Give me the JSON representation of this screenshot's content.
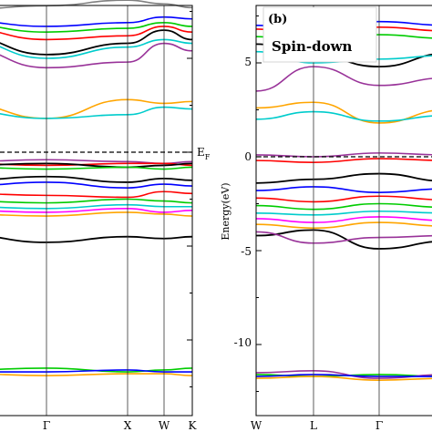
{
  "chart_data": [
    {
      "type": "line",
      "panel": "left (spin-up, cropped)",
      "title": "",
      "xlabel": "",
      "ylabel": "",
      "k_points": [
        "Γ",
        "X",
        "W",
        "K"
      ],
      "fermi_label": "E",
      "fermi_sub": "F",
      "fermi_energy": 0,
      "ylim": [
        -12.8,
        8.2
      ],
      "grid": false,
      "series": [
        {
          "color": "#808080",
          "x": [
            0,
            1,
            2,
            3,
            4
          ],
          "y": [
            7.6,
            7.8,
            8.1,
            7.9,
            7.7
          ]
        },
        {
          "color": "#00cc00",
          "x": [
            0,
            1,
            2,
            3,
            4
          ],
          "y": [
            6.8,
            6.4,
            6.6,
            6.9,
            6.7
          ]
        },
        {
          "color": "#000000",
          "x": [
            0,
            1,
            2,
            3,
            4
          ],
          "y": [
            6.2,
            5.2,
            5.8,
            6.5,
            6.0
          ]
        },
        {
          "color": "#ff0000",
          "x": [
            0,
            1,
            2,
            3,
            4
          ],
          "y": [
            6.6,
            6.0,
            6.2,
            6.7,
            6.4
          ]
        },
        {
          "color": "#0000ff",
          "x": [
            0,
            1,
            2,
            3,
            4
          ],
          "y": [
            7.0,
            6.7,
            6.9,
            7.2,
            7.1
          ]
        },
        {
          "color": "#00cccc",
          "x": [
            0,
            1,
            2,
            3,
            4
          ],
          "y": [
            6.0,
            5.0,
            5.6,
            6.0,
            5.8
          ]
        },
        {
          "color": "#993399",
          "x": [
            0,
            1,
            2,
            3,
            4
          ],
          "y": [
            5.6,
            4.5,
            4.8,
            5.8,
            5.4
          ]
        },
        {
          "color": "#ffa500",
          "x": [
            0,
            1,
            2,
            3,
            4
          ],
          "y": [
            2.6,
            1.8,
            2.8,
            2.6,
            2.7
          ]
        },
        {
          "color": "#00cccc",
          "x": [
            0,
            1,
            2,
            3,
            4
          ],
          "y": [
            2.2,
            1.8,
            2.0,
            2.4,
            2.3
          ]
        },
        {
          "color": "#993399",
          "x": [
            0,
            1,
            2,
            3,
            4
          ],
          "y": [
            -0.5,
            -0.4,
            -0.5,
            -0.6,
            -0.5
          ]
        },
        {
          "color": "#ff0000",
          "x": [
            0,
            1,
            2,
            3,
            4
          ],
          "y": [
            -0.6,
            -0.7,
            -0.6,
            -0.6,
            -0.7
          ]
        },
        {
          "color": "#000000",
          "x": [
            0,
            1,
            2,
            3,
            4
          ],
          "y": [
            -0.7,
            -0.6,
            -0.8,
            -0.7,
            -0.6
          ]
        },
        {
          "color": "#00cc00",
          "x": [
            0,
            1,
            2,
            3,
            4
          ],
          "y": [
            -0.8,
            -0.9,
            -0.8,
            -0.9,
            -0.8
          ]
        },
        {
          "color": "#000000",
          "x": [
            0,
            1,
            2,
            3,
            4
          ],
          "y": [
            -1.5,
            -1.3,
            -1.6,
            -1.4,
            -1.5
          ]
        },
        {
          "color": "#0000ff",
          "x": [
            0,
            1,
            2,
            3,
            4
          ],
          "y": [
            -1.8,
            -1.6,
            -1.9,
            -1.7,
            -1.8
          ]
        },
        {
          "color": "#ff0000",
          "x": [
            0,
            1,
            2,
            3,
            4
          ],
          "y": [
            -2.2,
            -2.3,
            -2.4,
            -2.1,
            -2.2
          ]
        },
        {
          "color": "#00cc00",
          "x": [
            0,
            1,
            2,
            3,
            4
          ],
          "y": [
            -2.6,
            -2.7,
            -2.5,
            -2.6,
            -2.7
          ]
        },
        {
          "color": "#00cccc",
          "x": [
            0,
            1,
            2,
            3,
            4
          ],
          "y": [
            -2.9,
            -3.0,
            -2.8,
            -2.9,
            -2.9
          ]
        },
        {
          "color": "#ff00ff",
          "x": [
            0,
            1,
            2,
            3,
            4
          ],
          "y": [
            -3.1,
            -3.2,
            -3.0,
            -3.2,
            -3.1
          ]
        },
        {
          "color": "#ffa500",
          "x": [
            0,
            1,
            2,
            3,
            4
          ],
          "y": [
            -3.3,
            -3.4,
            -3.2,
            -3.3,
            -3.4
          ]
        },
        {
          "color": "#000000",
          "x": [
            0,
            1,
            2,
            3,
            4
          ],
          "y": [
            -4.4,
            -4.8,
            -4.5,
            -4.6,
            -4.5
          ]
        },
        {
          "color": "#00cc00",
          "x": [
            0,
            1,
            2,
            3,
            4
          ],
          "y": [
            -11.6,
            -11.5,
            -11.7,
            -11.6,
            -11.5
          ]
        },
        {
          "color": "#ffa500",
          "x": [
            0,
            1,
            2,
            3,
            4
          ],
          "y": [
            -11.8,
            -11.9,
            -11.8,
            -11.8,
            -11.9
          ]
        },
        {
          "color": "#0000ff",
          "x": [
            0,
            1,
            2,
            3,
            4
          ],
          "y": [
            -11.7,
            -11.7,
            -11.6,
            -11.7,
            -11.7
          ]
        }
      ]
    },
    {
      "type": "line",
      "panel": "(b)",
      "title": "",
      "legend": "Spin-down",
      "xlabel": "",
      "ylabel": "Energy(eV)",
      "k_points": [
        "W",
        "L",
        "Γ"
      ],
      "yticks": [
        5,
        0,
        -5,
        -10
      ],
      "ylim": [
        -12.8,
        8.2
      ],
      "grid": false,
      "series": [
        {
          "color": "#ff0000",
          "x": [
            0,
            1,
            2,
            3
          ],
          "y": [
            6.8,
            6.3,
            6.9,
            6.7
          ]
        },
        {
          "color": "#0000ff",
          "x": [
            0,
            1,
            2,
            3
          ],
          "y": [
            7.0,
            6.7,
            7.2,
            7.0
          ]
        },
        {
          "color": "#00cc00",
          "x": [
            0,
            1,
            2,
            3
          ],
          "y": [
            6.4,
            6.0,
            6.5,
            6.3
          ]
        },
        {
          "color": "#000000",
          "x": [
            0,
            1,
            2,
            3
          ],
          "y": [
            6.0,
            5.4,
            4.8,
            5.5
          ]
        },
        {
          "color": "#00cccc",
          "x": [
            0,
            1,
            2,
            3
          ],
          "y": [
            5.6,
            5.0,
            5.2,
            5.4
          ]
        },
        {
          "color": "#993399",
          "x": [
            0,
            1,
            2,
            3
          ],
          "y": [
            3.5,
            4.8,
            3.8,
            4.2
          ]
        },
        {
          "color": "#ffa500",
          "x": [
            0,
            1,
            2,
            3
          ],
          "y": [
            2.6,
            2.9,
            1.8,
            2.5
          ]
        },
        {
          "color": "#00cccc",
          "x": [
            0,
            1,
            2,
            3
          ],
          "y": [
            2.0,
            2.4,
            1.9,
            2.2
          ]
        },
        {
          "color": "#993399",
          "x": [
            0,
            1,
            2,
            3
          ],
          "y": [
            0.1,
            0.0,
            0.2,
            0.1
          ]
        },
        {
          "color": "#ff0000",
          "x": [
            0,
            1,
            2,
            3
          ],
          "y": [
            -0.2,
            -0.3,
            -0.1,
            -0.2
          ]
        },
        {
          "color": "#000000",
          "x": [
            0,
            1,
            2,
            3
          ],
          "y": [
            -1.4,
            -1.2,
            -0.9,
            -1.3
          ]
        },
        {
          "color": "#0000ff",
          "x": [
            0,
            1,
            2,
            3
          ],
          "y": [
            -1.8,
            -1.6,
            -1.9,
            -1.7
          ]
        },
        {
          "color": "#ff0000",
          "x": [
            0,
            1,
            2,
            3
          ],
          "y": [
            -2.2,
            -2.4,
            -2.1,
            -2.3
          ]
        },
        {
          "color": "#00cc00",
          "x": [
            0,
            1,
            2,
            3
          ],
          "y": [
            -2.6,
            -2.8,
            -2.5,
            -2.7
          ]
        },
        {
          "color": "#00cccc",
          "x": [
            0,
            1,
            2,
            3
          ],
          "y": [
            -3.0,
            -3.1,
            -2.9,
            -3.0
          ]
        },
        {
          "color": "#ff00ff",
          "x": [
            0,
            1,
            2,
            3
          ],
          "y": [
            -3.3,
            -3.5,
            -3.2,
            -3.4
          ]
        },
        {
          "color": "#ffa500",
          "x": [
            0,
            1,
            2,
            3
          ],
          "y": [
            -3.6,
            -3.8,
            -3.5,
            -3.7
          ]
        },
        {
          "color": "#000000",
          "x": [
            0,
            1,
            2,
            3
          ],
          "y": [
            -4.2,
            -3.9,
            -4.9,
            -4.5
          ]
        },
        {
          "color": "#993399",
          "x": [
            0,
            1,
            2,
            3
          ],
          "y": [
            -4.0,
            -4.6,
            -4.3,
            -4.2
          ]
        },
        {
          "color": "#00cc00",
          "x": [
            0,
            1,
            2,
            3
          ],
          "y": [
            -11.6,
            -11.7,
            -11.6,
            -11.7
          ]
        },
        {
          "color": "#ffa500",
          "x": [
            0,
            1,
            2,
            3
          ],
          "y": [
            -11.8,
            -11.7,
            -11.9,
            -11.8
          ]
        },
        {
          "color": "#993399",
          "x": [
            0,
            1,
            2,
            3
          ],
          "y": [
            -11.5,
            -11.4,
            -11.8,
            -11.6
          ]
        },
        {
          "color": "#0000ff",
          "x": [
            0,
            1,
            2,
            3
          ],
          "y": [
            -11.7,
            -11.6,
            -11.7,
            -11.7
          ]
        }
      ]
    }
  ]
}
